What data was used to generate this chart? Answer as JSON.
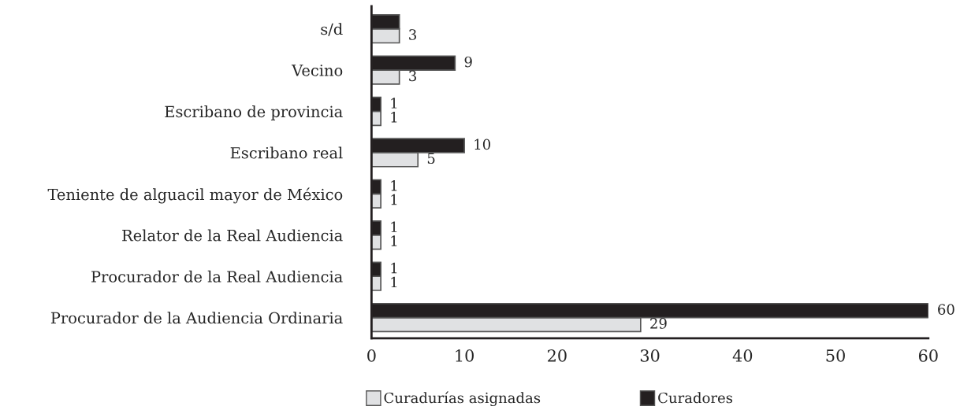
{
  "chart_data": {
    "type": "bar",
    "orientation": "horizontal",
    "categories": [
      "s/d",
      "Vecino",
      "Escribano de provincia",
      "Escribano real",
      "Teniente de alguacil mayor de México",
      "Relator de la Real Audiencia",
      "Procurador de la Real Audiencia",
      "Procurador de la Audiencia Ordinaria"
    ],
    "series": [
      {
        "name": "Curadurías asignadas",
        "color": "#e0e1e3",
        "values": [
          3,
          3,
          1,
          5,
          1,
          1,
          1,
          29
        ],
        "value_labels": [
          "3",
          "3",
          "1",
          "5",
          "1",
          "1",
          "1",
          "29"
        ]
      },
      {
        "name": "Curadores",
        "color": "#231f20",
        "values": [
          3,
          9,
          1,
          10,
          1,
          1,
          1,
          60
        ],
        "value_labels": [
          null,
          "9",
          "1",
          "10",
          "1",
          "1",
          "1",
          "60"
        ]
      }
    ],
    "xlim": [
      0,
      60
    ],
    "xticks": [
      0,
      10,
      20,
      30,
      40,
      50,
      60
    ],
    "grid": false,
    "legend": "bottom"
  }
}
